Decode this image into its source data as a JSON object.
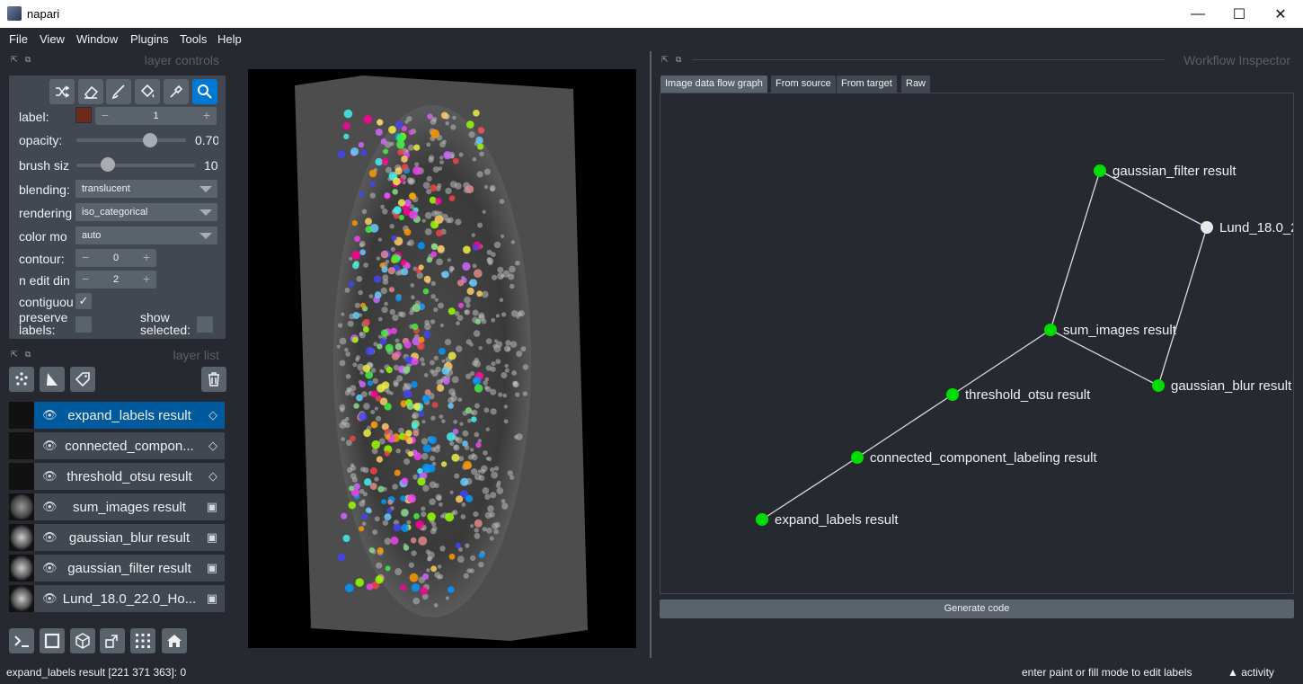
{
  "window": {
    "title": "napari",
    "minimize": "—",
    "maximize": "☐",
    "close": "✕"
  },
  "menu": [
    "File",
    "View",
    "Window",
    "Plugins",
    "Tools",
    "Help"
  ],
  "layer_controls": {
    "header": "layer controls",
    "label_label": "label:",
    "label_value": "1",
    "label_color": "#6b2a1c",
    "opacity_label": "opacity:",
    "opacity_value": "0.70",
    "opacity_fraction": 0.7,
    "brush_label": "brush siz",
    "brush_value": "10",
    "blending_label": "blending:",
    "blending_value": "translucent",
    "rendering_label": "rendering",
    "rendering_value": "iso_categorical",
    "colormode_label": "color mo",
    "colormode_value": "auto",
    "contour_label": "contour:",
    "contour_value": "0",
    "ndim_label": "n edit din",
    "ndim_value": "2",
    "contiguous_label": "contiguou",
    "preserve_label": "preserve labels:",
    "show_selected_label": "show selected:"
  },
  "layer_list": {
    "header": "layer list",
    "layers": [
      {
        "name": "expand_labels result",
        "type": "labels",
        "selected": true
      },
      {
        "name": "connected_compon...",
        "type": "labels",
        "selected": false
      },
      {
        "name": "threshold_otsu result",
        "type": "labels",
        "selected": false
      },
      {
        "name": "sum_images result",
        "type": "image",
        "selected": false
      },
      {
        "name": "gaussian_blur result",
        "type": "image",
        "selected": false
      },
      {
        "name": "gaussian_filter result",
        "type": "image",
        "selected": false
      },
      {
        "name": "Lund_18.0_22.0_Ho...",
        "type": "image",
        "selected": false
      }
    ]
  },
  "inspector": {
    "header": "Workflow Inspector",
    "tabs": [
      "Image data flow graph",
      "From source",
      "From target",
      "Raw"
    ],
    "active_tab": 0,
    "nodes": [
      {
        "id": "gf",
        "label": "gaussian_filter result",
        "color": "#00dd00"
      },
      {
        "id": "lund",
        "label": "Lund_18.0_2",
        "color": "#e8e8e8"
      },
      {
        "id": "sum",
        "label": "sum_images result",
        "color": "#00dd00"
      },
      {
        "id": "gb",
        "label": "gaussian_blur result",
        "color": "#00dd00"
      },
      {
        "id": "otsu",
        "label": "threshold_otsu result",
        "color": "#00dd00"
      },
      {
        "id": "ccl",
        "label": "connected_component_labeling result",
        "color": "#00dd00"
      },
      {
        "id": "exp",
        "label": "expand_labels result",
        "color": "#00dd00"
      }
    ],
    "edges": [
      [
        "lund",
        "gf"
      ],
      [
        "lund",
        "gb"
      ],
      [
        "gf",
        "sum"
      ],
      [
        "gb",
        "sum"
      ],
      [
        "sum",
        "otsu"
      ],
      [
        "otsu",
        "ccl"
      ],
      [
        "ccl",
        "exp"
      ]
    ],
    "generate": "Generate code"
  },
  "status": {
    "left": "expand_labels result [221 371 363]: 0",
    "right": "enter paint or fill mode to edit labels",
    "activity": "activity"
  }
}
